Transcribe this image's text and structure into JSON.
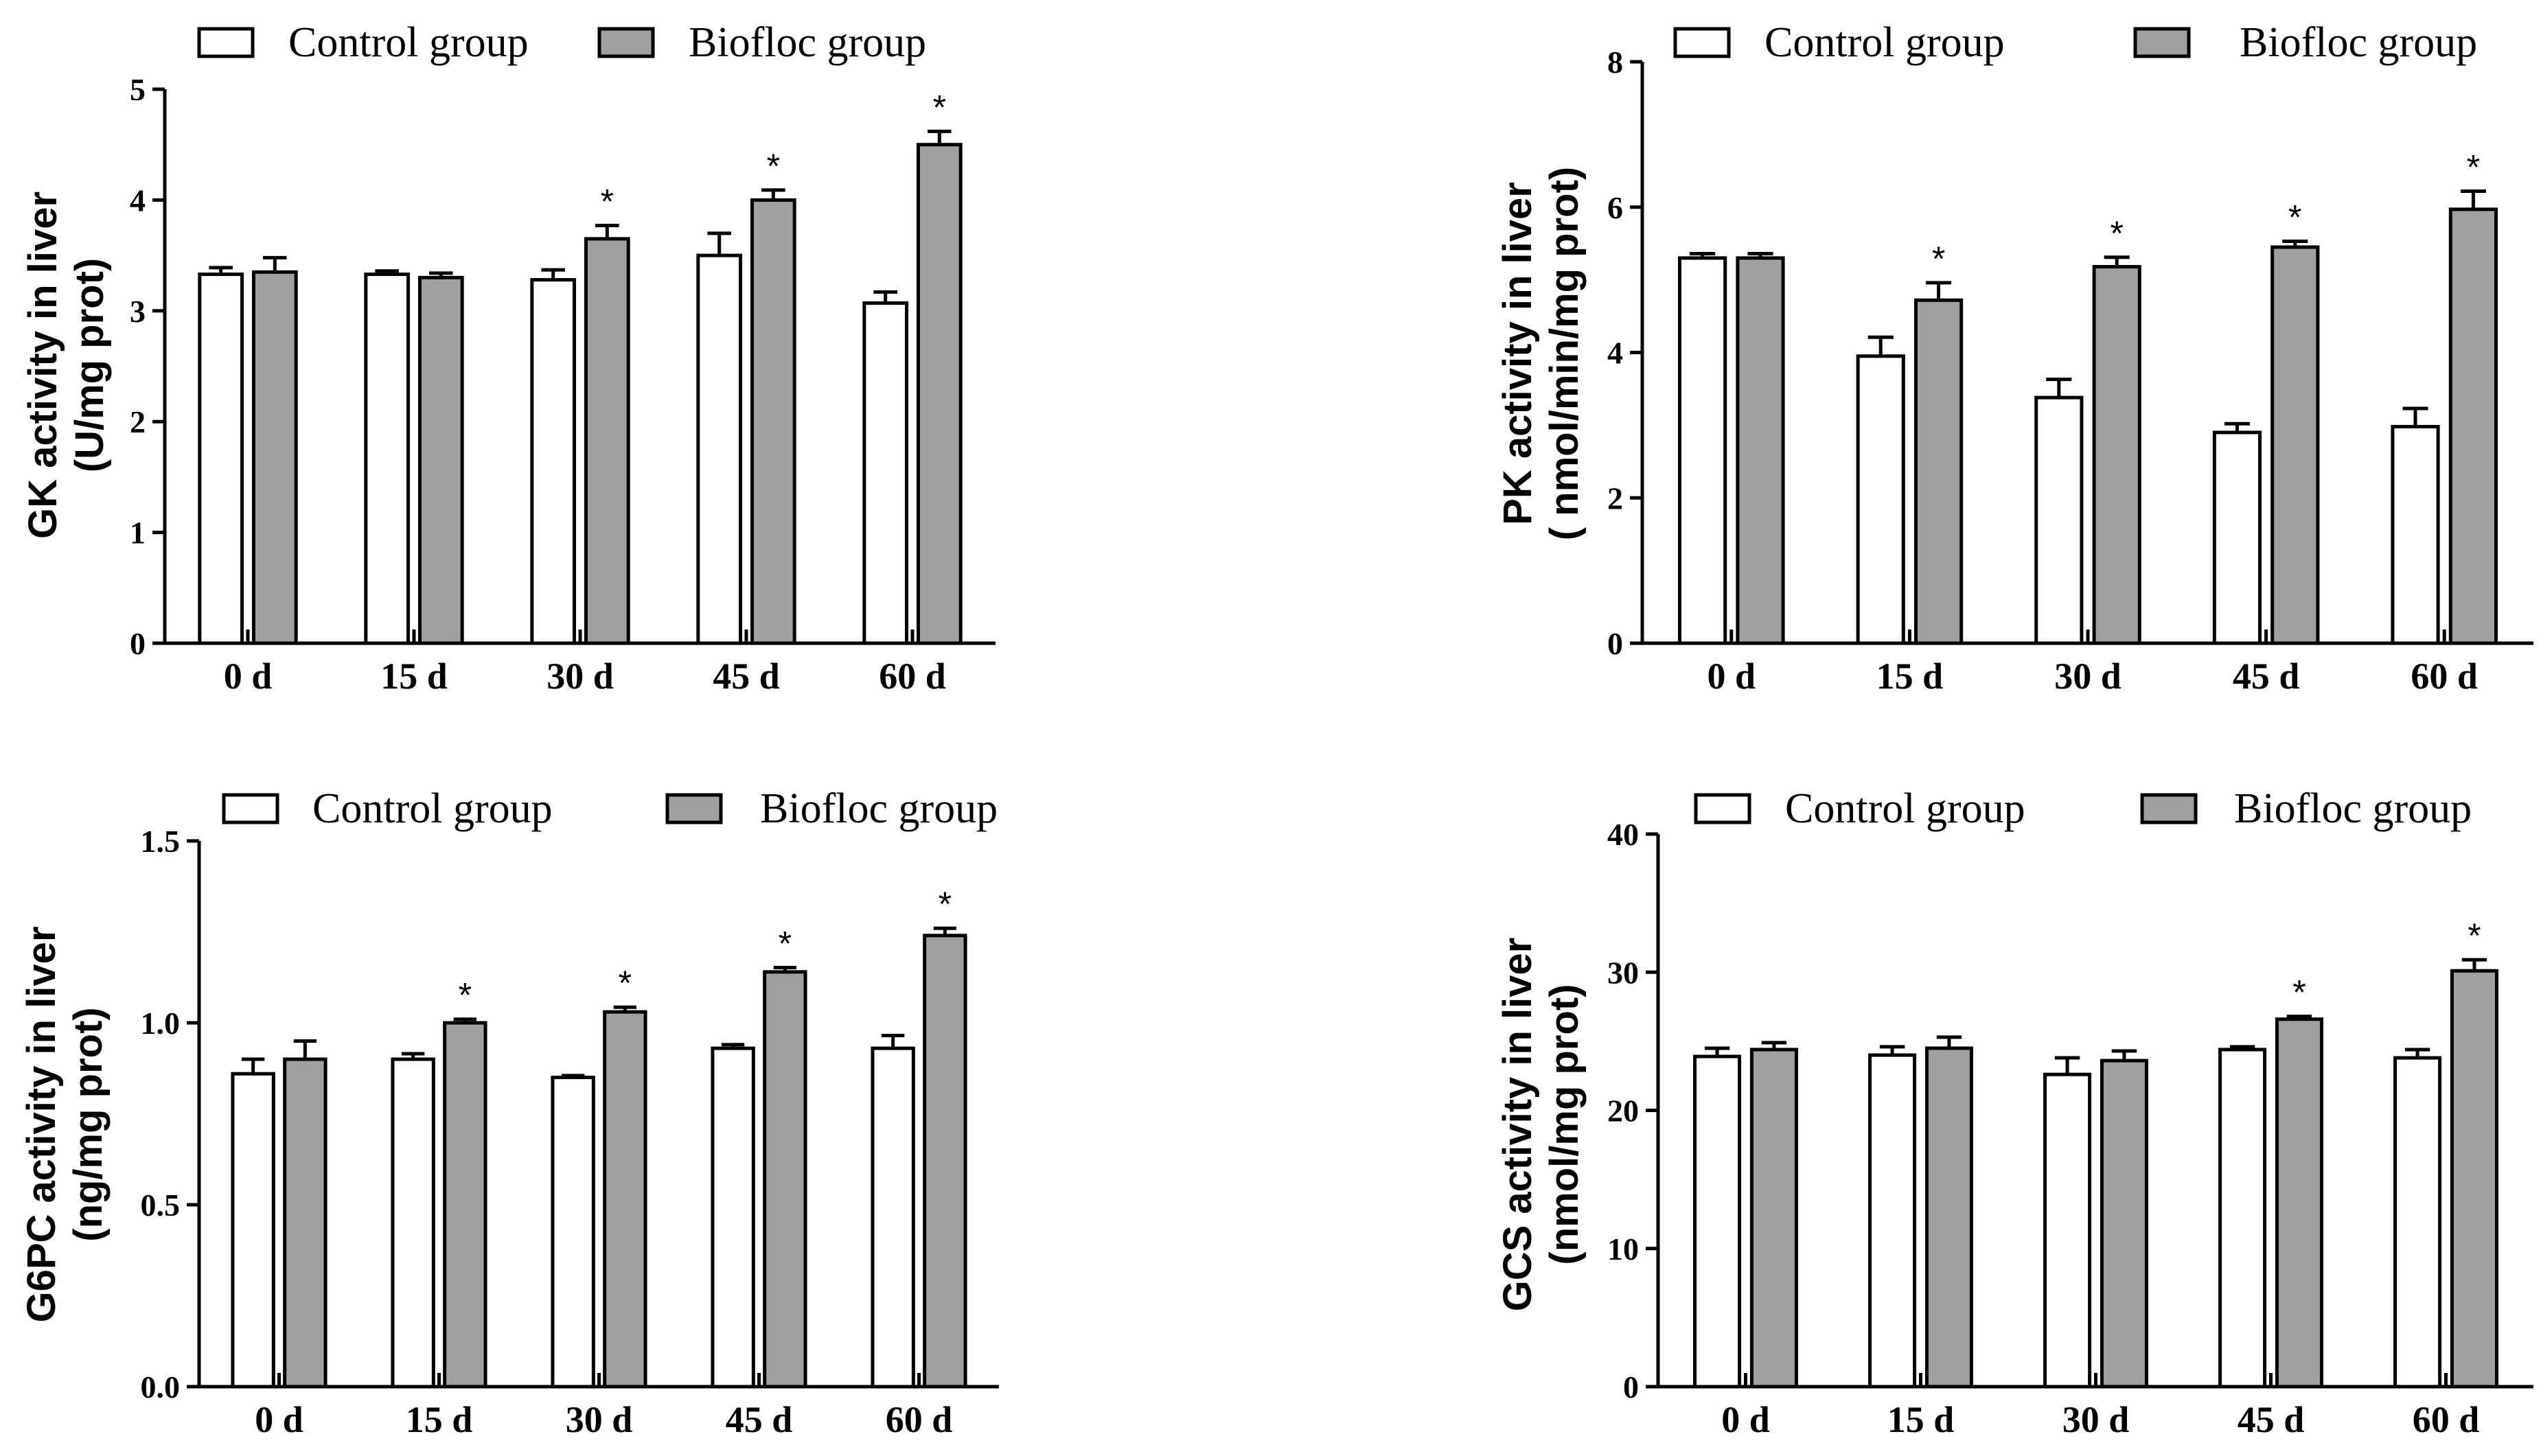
{
  "colors": {
    "control": "#ffffff",
    "biofloc": "#a0a0a0",
    "axis": "#000000"
  },
  "legend": {
    "control": "Control group",
    "biofloc": "Biofloc group"
  },
  "chart_data": [
    {
      "id": "gk",
      "type": "bar",
      "ylabel_line1": "GK activity in liver",
      "ylabel_line2": "(U/mg prot)",
      "categories": [
        "0 d",
        "15 d",
        "30 d",
        "45 d",
        "60 d"
      ],
      "ylim": [
        0,
        5
      ],
      "yticks": [
        0,
        1,
        2,
        3,
        4,
        5
      ],
      "ytick_labels": [
        "0",
        "1",
        "2",
        "3",
        "4",
        "5"
      ],
      "series": [
        {
          "name": "Control group",
          "values": [
            3.33,
            3.33,
            3.28,
            3.5,
            3.07
          ],
          "errors": [
            0.06,
            0.03,
            0.09,
            0.2,
            0.1
          ]
        },
        {
          "name": "Biofloc group",
          "values": [
            3.35,
            3.3,
            3.65,
            4.0,
            4.5
          ],
          "errors": [
            0.13,
            0.04,
            0.12,
            0.09,
            0.12
          ]
        }
      ],
      "significance": [
        "",
        "",
        "*",
        "*",
        "*"
      ]
    },
    {
      "id": "pk",
      "type": "bar",
      "ylabel_line1": "PK activity in liver",
      "ylabel_line2": "( nmol/min/mg prot)",
      "categories": [
        "0 d",
        "15 d",
        "30 d",
        "45 d",
        "60 d"
      ],
      "ylim": [
        0,
        8
      ],
      "yticks": [
        0,
        2,
        4,
        6,
        8
      ],
      "ytick_labels": [
        "0",
        "2",
        "4",
        "6",
        "8"
      ],
      "series": [
        {
          "name": "Control group",
          "values": [
            5.3,
            3.95,
            3.38,
            2.9,
            2.98
          ],
          "errors": [
            0.06,
            0.26,
            0.25,
            0.12,
            0.25
          ]
        },
        {
          "name": "Biofloc group",
          "values": [
            5.3,
            4.72,
            5.18,
            5.45,
            5.97
          ],
          "errors": [
            0.06,
            0.24,
            0.13,
            0.08,
            0.25
          ]
        }
      ],
      "significance": [
        "",
        "*",
        "*",
        "*",
        "*"
      ]
    },
    {
      "id": "g6pc",
      "type": "bar",
      "ylabel_line1": "G6PC activity in liver",
      "ylabel_line2": "(ng/mg prot)",
      "categories": [
        "0 d",
        "15 d",
        "30 d",
        "45 d",
        "60 d"
      ],
      "ylim": [
        0,
        1.5
      ],
      "yticks": [
        0,
        0.5,
        1.0,
        1.5
      ],
      "ytick_labels": [
        "0.0",
        "0.5",
        "1.0",
        "1.5"
      ],
      "series": [
        {
          "name": "Control group",
          "values": [
            0.86,
            0.9,
            0.85,
            0.93,
            0.93
          ],
          "errors": [
            0.04,
            0.015,
            0.005,
            0.01,
            0.035
          ]
        },
        {
          "name": "Biofloc group",
          "values": [
            0.9,
            1.0,
            1.03,
            1.14,
            1.24
          ],
          "errors": [
            0.05,
            0.01,
            0.013,
            0.012,
            0.02
          ]
        }
      ],
      "significance": [
        "",
        "*",
        "*",
        "*",
        "*"
      ]
    },
    {
      "id": "gcs",
      "type": "bar",
      "ylabel_line1": "GCS activity in liver",
      "ylabel_line2": "(nmol/mg prot)",
      "categories": [
        "0 d",
        "15 d",
        "30 d",
        "45 d",
        "60 d"
      ],
      "ylim": [
        0,
        40
      ],
      "yticks": [
        0,
        10,
        20,
        30,
        40
      ],
      "ytick_labels": [
        "0",
        "10",
        "20",
        "30",
        "40"
      ],
      "series": [
        {
          "name": "Control group",
          "values": [
            23.9,
            24.0,
            22.6,
            24.4,
            23.8
          ],
          "errors": [
            0.6,
            0.6,
            1.2,
            0.2,
            0.6
          ]
        },
        {
          "name": "Biofloc group",
          "values": [
            24.4,
            24.5,
            23.6,
            26.6,
            30.1
          ],
          "errors": [
            0.5,
            0.8,
            0.7,
            0.2,
            0.8
          ]
        }
      ],
      "significance": [
        "",
        "",
        "",
        "*",
        "*"
      ]
    }
  ]
}
